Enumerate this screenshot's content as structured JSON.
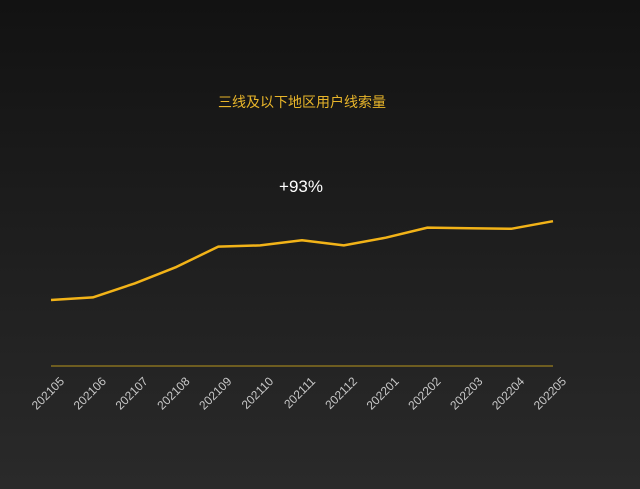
{
  "chart_data": {
    "type": "line",
    "title": "三线及以下地区用户线索量",
    "annotation": "+93%",
    "categories": [
      "202105",
      "202106",
      "202107",
      "202108",
      "202109",
      "202110",
      "202111",
      "202112",
      "202201",
      "202202",
      "202203",
      "202204",
      "202205"
    ],
    "series": [
      {
        "values": [
          52,
          54,
          65,
          78,
          94,
          95,
          99,
          95,
          101,
          109,
          108.5,
          108,
          114
        ]
      }
    ],
    "ylim": [
      0,
      200
    ],
    "grid": false,
    "colors": {
      "line": "#f2b318",
      "title": "#e8b52a",
      "axis": "#b8961c",
      "annotation": "#ffffff",
      "tick": "#c8c8c8"
    }
  }
}
